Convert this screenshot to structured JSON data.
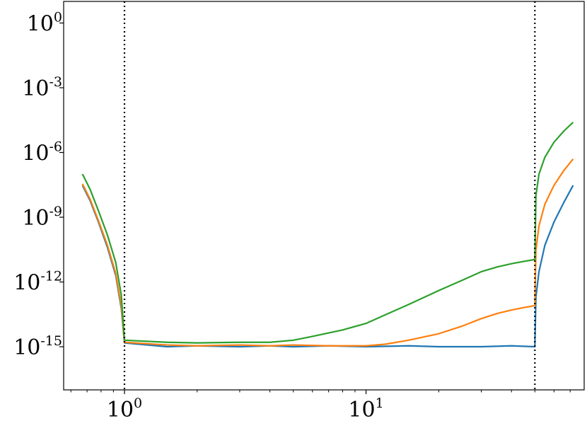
{
  "chart_data": {
    "type": "line",
    "title": "",
    "xlabel": "",
    "ylabel": "",
    "xscale": "log",
    "yscale": "log",
    "xlim": [
      0.56,
      80
    ],
    "ylim": [
      1e-17,
      10.0
    ],
    "grid": false,
    "legend": "none",
    "x_ticks": [
      {
        "value": 1,
        "label_base": "10",
        "label_exp": "0"
      },
      {
        "value": 10,
        "label_base": "10",
        "label_exp": "1"
      }
    ],
    "y_ticks": [
      {
        "value": 1.0,
        "label_base": "10",
        "label_exp": "0"
      },
      {
        "value": 0.001,
        "label_base": "10",
        "label_exp": "-3"
      },
      {
        "value": 1e-06,
        "label_base": "10",
        "label_exp": "-6"
      },
      {
        "value": 1e-09,
        "label_base": "10",
        "label_exp": "-9"
      },
      {
        "value": 1e-12,
        "label_base": "10",
        "label_exp": "-12"
      },
      {
        "value": 1e-15,
        "label_base": "10",
        "label_exp": "-15"
      }
    ],
    "vlines": [
      {
        "x": 1.0,
        "style": "dotted",
        "color": "#000000"
      },
      {
        "x": 50.0,
        "style": "dotted",
        "color": "#000000"
      }
    ],
    "series": [
      {
        "color": "#1f77b4",
        "points": [
          [
            0.67,
            3e-08
          ],
          [
            0.72,
            6e-09
          ],
          [
            0.78,
            6e-10
          ],
          [
            0.85,
            4e-11
          ],
          [
            0.92,
            2e-12
          ],
          [
            0.97,
            6e-14
          ],
          [
            1.0,
            1.5e-15
          ],
          [
            1.5,
            1e-15
          ],
          [
            2,
            1.1e-15
          ],
          [
            3,
            1e-15
          ],
          [
            4,
            1.1e-15
          ],
          [
            5,
            1e-15
          ],
          [
            7,
            1.1e-15
          ],
          [
            10,
            1e-15
          ],
          [
            15,
            1.1e-15
          ],
          [
            20,
            1e-15
          ],
          [
            30,
            1e-15
          ],
          [
            40,
            1.1e-15
          ],
          [
            50,
            1e-15
          ],
          [
            50.5,
            2e-13
          ],
          [
            52,
            3e-12
          ],
          [
            55,
            5e-11
          ],
          [
            60,
            6e-10
          ],
          [
            66,
            5e-09
          ],
          [
            72,
            3e-08
          ]
        ]
      },
      {
        "color": "#ff7f0e",
        "points": [
          [
            0.67,
            3.5e-08
          ],
          [
            0.72,
            7e-09
          ],
          [
            0.78,
            7e-10
          ],
          [
            0.85,
            5e-11
          ],
          [
            0.92,
            2.5e-12
          ],
          [
            0.97,
            8e-14
          ],
          [
            1.0,
            1.6e-15
          ],
          [
            1.5,
            1.2e-15
          ],
          [
            2,
            1.1e-15
          ],
          [
            3,
            1.2e-15
          ],
          [
            4,
            1.1e-15
          ],
          [
            5,
            1.2e-15
          ],
          [
            7,
            1.1e-15
          ],
          [
            10,
            1.1e-15
          ],
          [
            12,
            1.3e-15
          ],
          [
            15,
            2e-15
          ],
          [
            20,
            4e-15
          ],
          [
            25,
            9e-15
          ],
          [
            30,
            2e-14
          ],
          [
            35,
            3.5e-14
          ],
          [
            40,
            5e-14
          ],
          [
            45,
            6.5e-14
          ],
          [
            50,
            8e-14
          ],
          [
            50.5,
            3e-11
          ],
          [
            52,
            4e-10
          ],
          [
            55,
            4e-09
          ],
          [
            60,
            3e-08
          ],
          [
            66,
            1.5e-07
          ],
          [
            72,
            5e-07
          ]
        ]
      },
      {
        "color": "#2ca02c",
        "points": [
          [
            0.67,
            1e-07
          ],
          [
            0.72,
            2e-08
          ],
          [
            0.78,
            2e-09
          ],
          [
            0.85,
            1.5e-10
          ],
          [
            0.92,
            8e-12
          ],
          [
            0.97,
            2.5e-13
          ],
          [
            1.0,
            2e-15
          ],
          [
            1.5,
            1.6e-15
          ],
          [
            2,
            1.5e-15
          ],
          [
            3,
            1.6e-15
          ],
          [
            4,
            1.6e-15
          ],
          [
            5,
            2e-15
          ],
          [
            6,
            3e-15
          ],
          [
            8,
            6e-15
          ],
          [
            10,
            1.2e-14
          ],
          [
            12,
            3e-14
          ],
          [
            15,
            9e-14
          ],
          [
            20,
            4e-13
          ],
          [
            25,
            1.2e-12
          ],
          [
            30,
            3e-12
          ],
          [
            35,
            5e-12
          ],
          [
            40,
            7e-12
          ],
          [
            45,
            9e-12
          ],
          [
            50,
            1.1e-11
          ],
          [
            50.5,
            1e-08
          ],
          [
            52,
            1e-07
          ],
          [
            55,
            6e-07
          ],
          [
            60,
            3e-06
          ],
          [
            66,
            1e-05
          ],
          [
            72,
            2.5e-05
          ]
        ]
      }
    ]
  }
}
